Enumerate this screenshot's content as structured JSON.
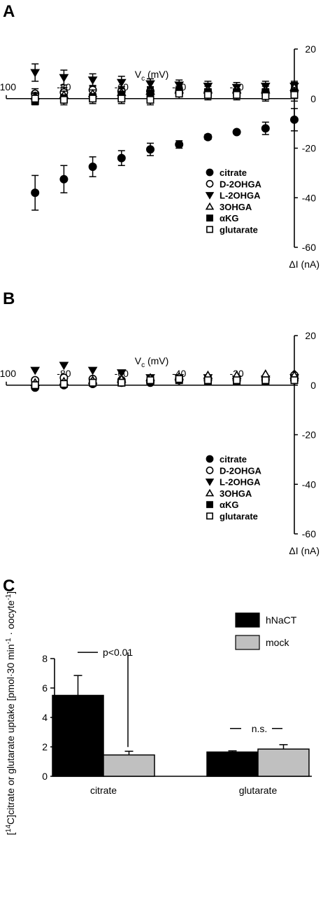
{
  "chart_data": [
    {
      "type": "scatter",
      "panel": "A",
      "xlabel": "V",
      "xlabel_sub": "c",
      "xlabel_unit": " (mV)",
      "ylabel": "ΔI (nA)",
      "xlim": [
        -100,
        0
      ],
      "ylim": [
        -60,
        20
      ],
      "x_ticks": [
        -100,
        -80,
        -60,
        -40,
        -20,
        0
      ],
      "y_ticks": [
        20,
        0,
        -20,
        -40,
        -60
      ],
      "legend_position": "lower-right",
      "x": [
        -90,
        -80,
        -70,
        -60,
        -50,
        -40,
        -30,
        -20,
        -10,
        0
      ],
      "series": [
        {
          "name": "citrate",
          "marker": "filled-circle",
          "values": [
            -38,
            -32.5,
            -27.5,
            -24,
            -20.5,
            -18.5,
            -15.5,
            -13.5,
            -12,
            -8.5
          ],
          "error": [
            7,
            5.5,
            4,
            3,
            2.5,
            1.5,
            1,
            0.7,
            2.5,
            4.5
          ]
        },
        {
          "name": "D-2OHGA",
          "marker": "open-circle",
          "values": [
            2,
            2.5,
            3.5,
            3,
            3,
            2.5,
            2.5,
            2.5,
            2.5,
            3
          ],
          "error": [
            2,
            2,
            1.8,
            1.8,
            1.8,
            1.5,
            1.5,
            1.5,
            1.5,
            2
          ]
        },
        {
          "name": "L-2OHGA",
          "marker": "filled-triangle-down",
          "values": [
            10.5,
            8.5,
            7.5,
            6.5,
            6,
            5.5,
            5,
            4.5,
            5,
            5
          ],
          "error": [
            3.5,
            3,
            2.5,
            2.5,
            2,
            2,
            2,
            2,
            2,
            2
          ]
        },
        {
          "name": "3OHGA",
          "marker": "open-triangle-up",
          "values": [
            1,
            1.5,
            2,
            2.5,
            3,
            3.5,
            3.5,
            3.5,
            3.5,
            4.5
          ],
          "error": [
            1.5,
            1.5,
            1.5,
            1.5,
            1.5,
            1.5,
            1.5,
            1.5,
            1.5,
            2
          ]
        },
        {
          "name": "αKG",
          "marker": "filled-square",
          "values": [
            -1,
            0,
            0.5,
            1.5,
            2,
            3,
            2.5,
            2.5,
            2.5,
            2.5
          ],
          "error": [
            1.5,
            1.5,
            1.5,
            1.5,
            1.5,
            1.5,
            1.5,
            1.5,
            1.5,
            2
          ]
        },
        {
          "name": "glutarate",
          "marker": "open-square",
          "values": [
            0,
            -0.5,
            0,
            0,
            -0.5,
            2,
            1.5,
            1.5,
            1,
            1.5
          ],
          "error": [
            2,
            2,
            2,
            2,
            2,
            2,
            2,
            2,
            2,
            2.5
          ]
        }
      ]
    },
    {
      "type": "scatter",
      "panel": "B",
      "xlabel": "V",
      "xlabel_sub": "c",
      "xlabel_unit": " (mV)",
      "ylabel": "ΔI (nA)",
      "xlim": [
        -100,
        0
      ],
      "ylim": [
        -60,
        20
      ],
      "x_ticks": [
        -100,
        -80,
        -60,
        -40,
        -20,
        0
      ],
      "y_ticks": [
        20,
        0,
        -20,
        -40,
        -60
      ],
      "legend_position": "lower-right",
      "x": [
        -90,
        -80,
        -70,
        -60,
        -50,
        -40,
        -30,
        -20,
        -10,
        0
      ],
      "series": [
        {
          "name": "citrate",
          "marker": "filled-circle",
          "values": [
            -1,
            0,
            0.5,
            1,
            1,
            2,
            2,
            2,
            2,
            2
          ]
        },
        {
          "name": "D-2OHGA",
          "marker": "open-circle",
          "values": [
            2,
            3,
            2.5,
            2,
            2,
            2.5,
            2.5,
            2.5,
            2.5,
            4
          ]
        },
        {
          "name": "L-2OHGA",
          "marker": "filled-triangle-down",
          "values": [
            6,
            8,
            6,
            5,
            3,
            3,
            3,
            2.5,
            2.5,
            3
          ]
        },
        {
          "name": "3OHGA",
          "marker": "open-triangle-up",
          "values": [
            1,
            1.5,
            2,
            2.5,
            3,
            3.5,
            4,
            4,
            4.5,
            4
          ]
        },
        {
          "name": "αKG",
          "marker": "filled-square",
          "values": [
            0,
            0.5,
            1,
            1,
            1.5,
            2,
            1.5,
            1.5,
            1.5,
            2
          ]
        },
        {
          "name": "glutarate",
          "marker": "open-square",
          "values": [
            0,
            0.5,
            1,
            1,
            2,
            2.5,
            2,
            2,
            2,
            2
          ]
        }
      ]
    },
    {
      "type": "bar",
      "panel": "C",
      "ylabel_parts": [
        "[",
        "14",
        "C]citrate or glutarate uptake [pmol·30 min",
        "-1",
        " · oocyte",
        "-1",
        "]"
      ],
      "ylim": [
        0,
        8
      ],
      "y_ticks": [
        0,
        2,
        4,
        6,
        8
      ],
      "categories": [
        "citrate",
        "glutarate"
      ],
      "legend_position": "top-right",
      "series": [
        {
          "name": "hNaCT",
          "color": "#000000",
          "values": [
            5.5,
            1.65
          ],
          "error": [
            1.35,
            0.08
          ]
        },
        {
          "name": "mock",
          "color": "#c0c0c0",
          "values": [
            1.45,
            1.85
          ],
          "error": [
            0.25,
            0.3
          ]
        }
      ],
      "annotations": [
        "p<0.01",
        "n.s."
      ]
    }
  ]
}
